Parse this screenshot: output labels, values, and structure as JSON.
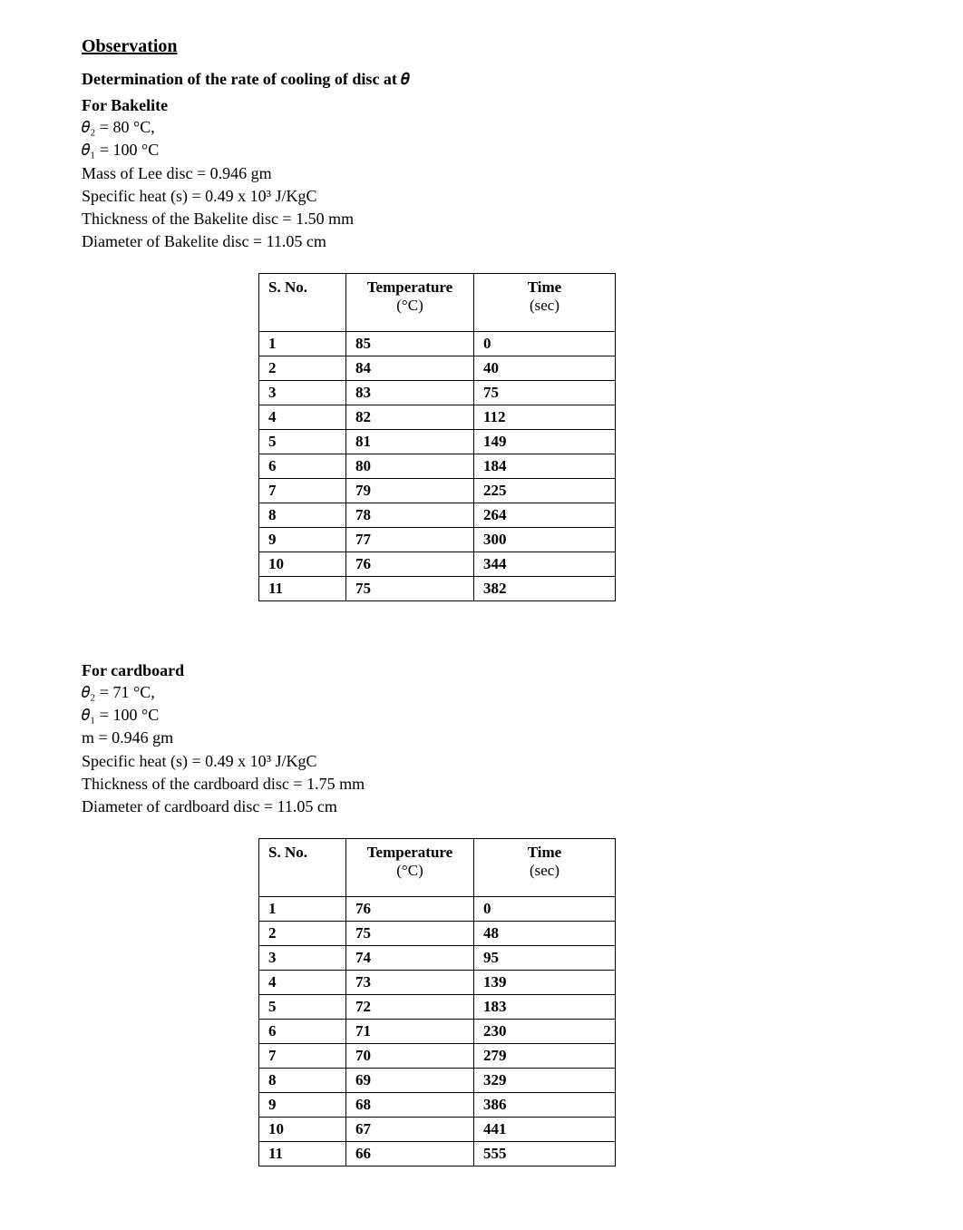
{
  "heading": "Observation",
  "determination_line": "Determination of the rate of cooling of disc at 𝜃",
  "bakelite": {
    "title": "For Bakelite",
    "theta2": "𝜃₂ = 80 °C,",
    "theta1": "𝜃₁ = 100 °C",
    "mass": "Mass of Lee disc = 0.946 gm",
    "specific_heat": "Specific heat (s) = 0.49 x 10³ J/KgC",
    "thickness": "Thickness of the Bakelite disc = 1.50 mm",
    "diameter": "Diameter of Bakelite disc = 11.05 cm",
    "table": {
      "columns": [
        "S. No.",
        "Temperature",
        "Time"
      ],
      "units": [
        "",
        "(°C)",
        "(sec)"
      ],
      "rows": [
        [
          "1",
          "85",
          "0"
        ],
        [
          "2",
          "84",
          "40"
        ],
        [
          "3",
          "83",
          "75"
        ],
        [
          "4",
          "82",
          "112"
        ],
        [
          "5",
          "81",
          "149"
        ],
        [
          "6",
          "80",
          "184"
        ],
        [
          "7",
          "79",
          "225"
        ],
        [
          "8",
          "78",
          "264"
        ],
        [
          "9",
          "77",
          "300"
        ],
        [
          "10",
          "76",
          "344"
        ],
        [
          "11",
          "75",
          "382"
        ]
      ]
    }
  },
  "cardboard": {
    "title": "For cardboard",
    "theta2": "𝜃₂ = 71 °C,",
    "theta1": "𝜃₁ = 100 °C",
    "mass": "m = 0.946 gm",
    "specific_heat": "Specific heat (s) = 0.49 x 10³ J/KgC",
    "thickness": "Thickness of the cardboard disc = 1.75 mm",
    "diameter": "Diameter of cardboard disc = 11.05 cm",
    "table": {
      "columns": [
        "S. No.",
        "Temperature",
        "Time"
      ],
      "units": [
        "",
        "(°C)",
        "(sec)"
      ],
      "rows": [
        [
          "1",
          "76",
          "0"
        ],
        [
          "2",
          "75",
          "48"
        ],
        [
          "3",
          "74",
          "95"
        ],
        [
          "4",
          "73",
          "139"
        ],
        [
          "5",
          "72",
          "183"
        ],
        [
          "6",
          "71",
          "230"
        ],
        [
          "7",
          "70",
          "279"
        ],
        [
          "8",
          "69",
          "329"
        ],
        [
          "9",
          "68",
          "386"
        ],
        [
          "10",
          "67",
          "441"
        ],
        [
          "11",
          "66",
          "555"
        ]
      ]
    }
  }
}
